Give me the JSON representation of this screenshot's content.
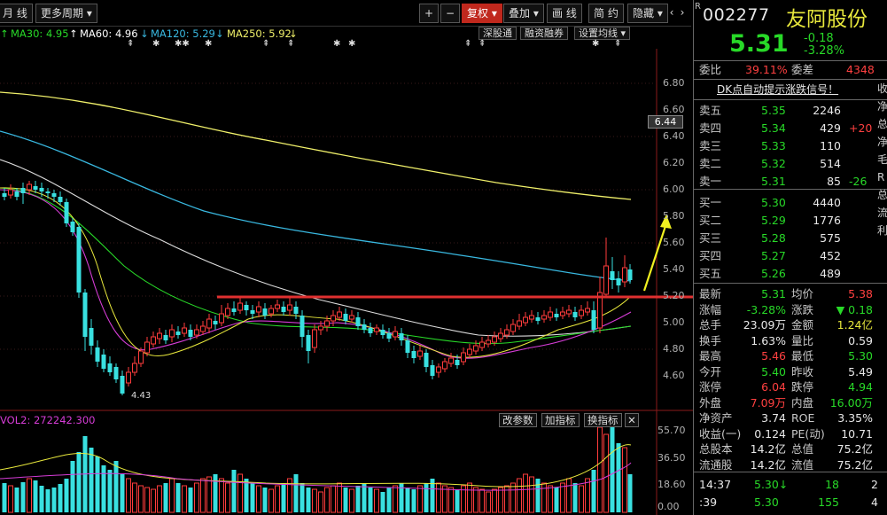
{
  "toolbar": {
    "period_month": "月 线",
    "more_period": "更多周期",
    "zoom_in": "+",
    "zoom_out": "−",
    "restore_rights": "复权",
    "overlay": "叠加",
    "draw_line": "画 线",
    "brief": "简 约",
    "hide": "隐藏",
    "prev": "‹",
    "next": "›"
  },
  "indicators": {
    "ma30": "MA30: 4.95",
    "ma60": "MA60: 4.96",
    "ma120": "MA120: 5.29",
    "ma250": "MA250: 5.92",
    "ma60_arrow": "↑",
    "ma120_arrow": "↓",
    "ma250_arrow": "↓",
    "ma30_arrow": "↑"
  },
  "subtools": {
    "sh_sz_connect": "深股通",
    "margin": "融资融券",
    "set_ma": "设置均线"
  },
  "event_marks": "⇞ ✱ ✱ ✱ ✱ ✱ ✱ ⇞ ⇞ ✱ ⇞",
  "price_axis": [
    "6.80",
    "6.60",
    "6.40",
    "6.20",
    "6.00",
    "5.80",
    "5.60",
    "5.40",
    "5.20",
    "5.00",
    "4.80",
    "4.60"
  ],
  "cursor_price": "6.44",
  "low_mark": "4.43",
  "volume_panel": {
    "label": "VOL2: 272242.300",
    "change_params": "改参数",
    "add_indicator": "加指标",
    "switch_indicator": "换指标",
    "close": "✕",
    "axis": [
      "55.70",
      "36.50",
      "18.60",
      "0.00"
    ]
  },
  "quote": {
    "r_mark": "R",
    "code": "002277",
    "name": "友阿股份",
    "price": "5.31",
    "change": "-0.18",
    "change_pct": "-3.28%",
    "wei_bi_label": "委比",
    "wei_bi": "39.11%",
    "wei_cha_label": "委差",
    "wei_cha": "4348",
    "dk_signal": "DK点自动提示涨跌信号！",
    "sells": [
      {
        "label": "卖五",
        "price": "5.35",
        "vol": "2246",
        "delta": ""
      },
      {
        "label": "卖四",
        "price": "5.34",
        "vol": "429",
        "delta": "+20"
      },
      {
        "label": "卖三",
        "price": "5.33",
        "vol": "110",
        "delta": ""
      },
      {
        "label": "卖二",
        "price": "5.32",
        "vol": "514",
        "delta": ""
      },
      {
        "label": "卖一",
        "price": "5.31",
        "vol": "85",
        "delta": "-26"
      }
    ],
    "buys": [
      {
        "label": "买一",
        "price": "5.30",
        "vol": "4440"
      },
      {
        "label": "买二",
        "price": "5.29",
        "vol": "1776"
      },
      {
        "label": "买三",
        "price": "5.28",
        "vol": "575"
      },
      {
        "label": "买四",
        "price": "5.27",
        "vol": "452"
      },
      {
        "label": "买五",
        "price": "5.26",
        "vol": "489"
      }
    ],
    "stats": [
      {
        "l1": "最新",
        "v1": "5.31",
        "l2": "均价",
        "v2": "5.38"
      },
      {
        "l1": "涨幅",
        "v1": "-3.28%",
        "l2": "涨跌",
        "v2": "▼ 0.18"
      },
      {
        "l1": "总手",
        "v1": "23.09万",
        "l2": "金额",
        "v2": "1.24亿"
      },
      {
        "l1": "换手",
        "v1": "1.63%",
        "l2": "量比",
        "v2": "0.59"
      },
      {
        "l1": "最高",
        "v1": "5.46",
        "l2": "最低",
        "v2": "5.30"
      },
      {
        "l1": "今开",
        "v1": "5.40",
        "l2": "昨收",
        "v2": "5.49"
      },
      {
        "l1": "涨停",
        "v1": "6.04",
        "l2": "跌停",
        "v2": "4.94"
      },
      {
        "l1": "外盘",
        "v1": "7.09万",
        "l2": "内盘",
        "v2": "16.00万"
      },
      {
        "l1": "净资产",
        "v1": "3.74",
        "l2": "ROE",
        "v2": "3.35%"
      },
      {
        "l1": "收益(一)",
        "v1": "0.124",
        "l2": "PE(动)",
        "v2": "10.71"
      },
      {
        "l1": "总股本",
        "v1": "14.2亿",
        "l2": "总值",
        "v2": "75.2亿"
      },
      {
        "l1": "流通股",
        "v1": "14.2亿",
        "l2": "流值",
        "v2": "75.2亿"
      }
    ],
    "ticks": [
      {
        "time": "14:37",
        "price": "5.30↓",
        "vol": "18",
        "n": "2"
      },
      {
        "time": ":39",
        "price": "5.30",
        "vol": "155",
        "n": "4"
      }
    ]
  }
}
